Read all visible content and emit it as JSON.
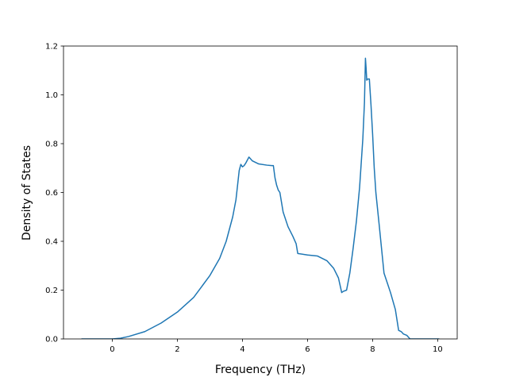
{
  "chart_data": {
    "type": "line",
    "title": "",
    "xlabel": "Frequency (THz)",
    "ylabel": "Density of States",
    "xlim": [
      -1.5,
      10.6
    ],
    "ylim": [
      0.0,
      1.2
    ],
    "xticks": [
      0,
      2,
      4,
      6,
      8,
      10
    ],
    "yticks": [
      0.0,
      0.2,
      0.4,
      0.6,
      0.8,
      1.0,
      1.2
    ],
    "xtick_labels": [
      "0",
      "2",
      "4",
      "6",
      "8",
      "10"
    ],
    "ytick_labels": [
      "0.0",
      "0.2",
      "0.4",
      "0.6",
      "0.8",
      "1.0",
      "1.2"
    ],
    "grid": false,
    "legend": "none",
    "color": "#1f77b4",
    "series": [
      {
        "x": [
          -0.95,
          -0.5,
          0.0,
          0.25,
          0.5,
          1.0,
          1.5,
          2.0,
          2.5,
          3.0,
          3.3,
          3.5,
          3.7,
          3.8,
          3.85,
          3.9,
          3.95,
          4.0,
          4.05,
          4.1,
          4.2,
          4.3,
          4.5,
          4.75,
          4.9,
          4.95,
          5.0,
          5.05,
          5.1,
          5.15,
          5.25,
          5.4,
          5.55,
          5.65,
          5.7,
          6.0,
          6.3,
          6.6,
          6.8,
          6.95,
          7.05,
          7.1,
          7.2,
          7.3,
          7.4,
          7.5,
          7.6,
          7.7,
          7.75,
          7.78,
          7.8,
          7.82,
          7.85,
          7.9,
          7.95,
          8.0,
          8.05,
          8.1,
          8.2,
          8.35,
          8.45,
          8.55,
          8.7,
          8.8,
          8.88,
          8.95,
          9.05,
          9.15,
          9.2,
          9.5,
          9.8,
          10.05
        ],
        "y": [
          0.0,
          0.0,
          0.0,
          0.003,
          0.01,
          0.03,
          0.065,
          0.11,
          0.17,
          0.26,
          0.33,
          0.4,
          0.5,
          0.57,
          0.63,
          0.69,
          0.715,
          0.705,
          0.71,
          0.72,
          0.745,
          0.73,
          0.717,
          0.712,
          0.71,
          0.71,
          0.66,
          0.63,
          0.61,
          0.6,
          0.52,
          0.46,
          0.42,
          0.39,
          0.35,
          0.344,
          0.34,
          0.32,
          0.29,
          0.25,
          0.19,
          0.195,
          0.2,
          0.27,
          0.37,
          0.48,
          0.62,
          0.82,
          0.97,
          1.15,
          1.11,
          1.06,
          1.065,
          1.065,
          0.96,
          0.84,
          0.7,
          0.6,
          0.47,
          0.27,
          0.23,
          0.19,
          0.12,
          0.035,
          0.03,
          0.02,
          0.015,
          0.0,
          0.0,
          0.0,
          0.0,
          0.0
        ]
      }
    ]
  }
}
